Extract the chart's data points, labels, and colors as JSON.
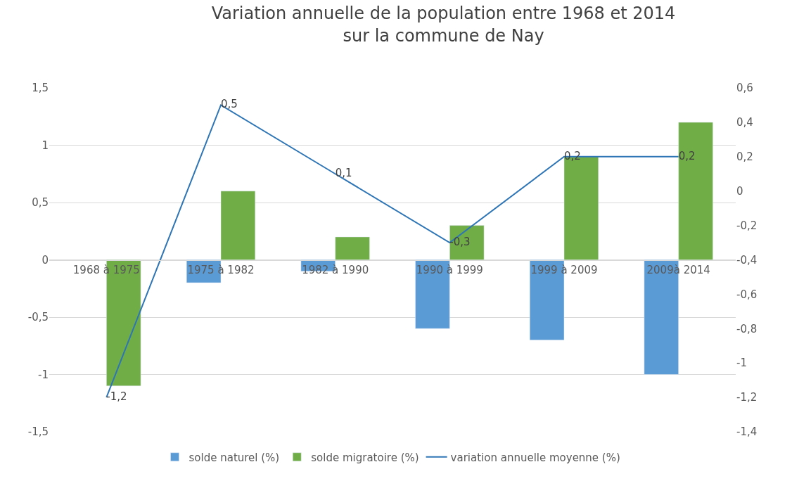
{
  "chart_data": {
    "type": "bar",
    "title": "Variation annuelle de la population entre 1968 et 2014 sur la commune de Nay",
    "categories": [
      "1968 à 1975",
      "1975 à 1982",
      "1982 à 1990",
      "1990 à 1999",
      "1999 à 2009",
      "2009à 2014"
    ],
    "series": [
      {
        "name": "solde naturel (%)",
        "color": "#5b9bd5",
        "values": [
          null,
          -0.2,
          -0.1,
          -0.6,
          -0.7,
          -1.0
        ]
      },
      {
        "name": "solde migratoire (%)",
        "color": "#70ad47",
        "values": [
          -1.1,
          0.6,
          0.2,
          0.3,
          0.9,
          1.2
        ]
      },
      {
        "name": "variation annuelle moyenne (%)",
        "type": "line",
        "axis": "y2",
        "color": "#2e75b6",
        "values": [
          -1.2,
          0.5,
          0.1,
          -0.3,
          0.2,
          0.2
        ],
        "value_labels": [
          "-1,2",
          "0,5",
          "0,1",
          "-0,3",
          "0,2",
          "0,2"
        ]
      }
    ],
    "ylim": [
      -1.5,
      1.5
    ],
    "yticks": [
      {
        "value": -1.5,
        "label": "-1,5"
      },
      -1,
      {
        "value": -0.5,
        "label": "-0,5"
      },
      0,
      {
        "value": 0.5,
        "label": "0,5"
      },
      1,
      {
        "value": 1.5,
        "label": "1,5"
      }
    ],
    "y2lim": [
      -1.4,
      0.6
    ],
    "y2ticks": [
      {
        "value": -1.4,
        "label": "-1,4"
      },
      {
        "value": -1.2,
        "label": "-1,2"
      },
      -1,
      {
        "value": -0.8,
        "label": "-0,8"
      },
      {
        "value": -0.6,
        "label": "-0,6"
      },
      {
        "value": -0.4,
        "label": "-0,4"
      },
      {
        "value": -0.2,
        "label": "-0,2"
      },
      0,
      {
        "value": 0.2,
        "label": "0,2"
      },
      {
        "value": 0.4,
        "label": "0,4"
      },
      {
        "value": 0.6,
        "label": "0,6"
      }
    ],
    "grid": "y",
    "legend": "bottom"
  }
}
